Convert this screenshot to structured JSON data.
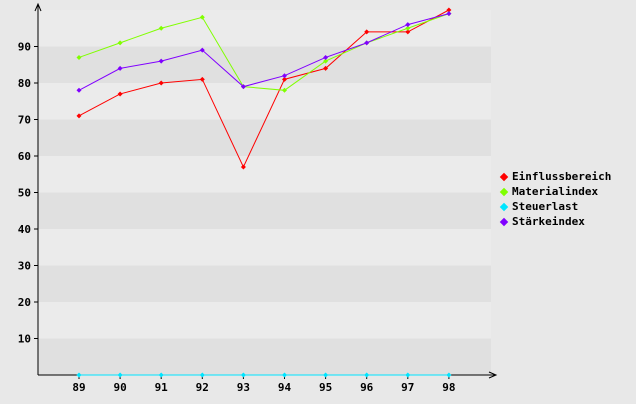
{
  "chart_data": {
    "type": "line",
    "title": "",
    "xlabel": "",
    "ylabel": "",
    "categories": [
      "89",
      "90",
      "91",
      "92",
      "93",
      "94",
      "95",
      "96",
      "97",
      "98"
    ],
    "ylim": [
      0,
      100
    ],
    "yticks": [
      10,
      20,
      30,
      40,
      50,
      60,
      70,
      80,
      90
    ],
    "grid": "horizontal alternating bands",
    "legend_position": "right",
    "series": [
      {
        "name": "Einflussbereich",
        "color": "#ff0000",
        "values": [
          71,
          77,
          80,
          81,
          57,
          81,
          84,
          94,
          94,
          100
        ]
      },
      {
        "name": "Materialindex",
        "color": "#80ff00",
        "values": [
          87,
          91,
          95,
          98,
          79,
          78,
          86,
          91,
          95,
          99
        ]
      },
      {
        "name": "Steuerlast",
        "color": "#00e5ff",
        "values": [
          0,
          0,
          0,
          0,
          0,
          0,
          0,
          0,
          0,
          0
        ]
      },
      {
        "name": "Stärkeindex",
        "color": "#8000ff",
        "values": [
          78,
          84,
          86,
          89,
          79,
          82,
          87,
          91,
          96,
          99
        ]
      }
    ]
  },
  "legend": {
    "items": [
      {
        "label": "Einflussbereich",
        "color": "#ff0000"
      },
      {
        "label": "Materialindex",
        "color": "#80ff00"
      },
      {
        "label": "Steuerlast",
        "color": "#00e5ff"
      },
      {
        "label": "Stärkeindex",
        "color": "#8000ff"
      }
    ]
  }
}
